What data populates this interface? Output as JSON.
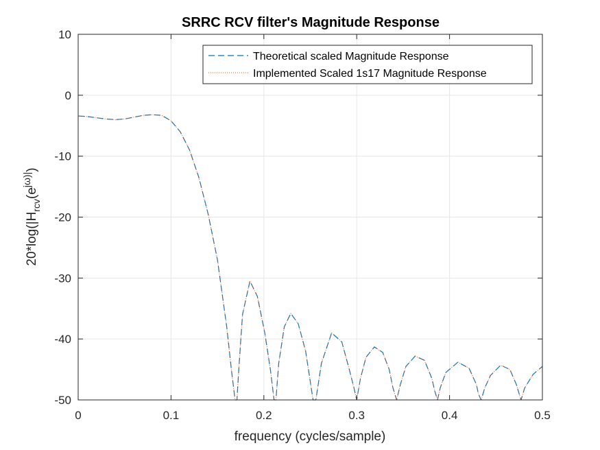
{
  "chart_data": {
    "type": "line",
    "title": "SRRC RCV filter's Magnitude Response",
    "xlabel": "frequency (cycles/sample)",
    "ylabel": "20*log(|H_rcv(e^jω)|)",
    "xlim": [
      0,
      0.5
    ],
    "ylim": [
      -50,
      10
    ],
    "xticks": [
      0,
      0.1,
      0.2,
      0.3,
      0.4,
      0.5
    ],
    "yticks": [
      10,
      0,
      -10,
      -20,
      -30,
      -40,
      -50
    ],
    "xtick_labels": [
      "0",
      "0.1",
      "0.2",
      "0.3",
      "0.4",
      "0.5"
    ],
    "ytick_labels": [
      "10",
      "0",
      "-10",
      "-20",
      "-30",
      "-40",
      "-50"
    ],
    "grid": true,
    "legend_position": "top-right",
    "colors": {
      "series1": "#0072BD",
      "series2": "#D95319"
    },
    "series": [
      {
        "name": "Theoretical scaled Magnitude Response",
        "style": "dashed",
        "x": [
          0,
          0.01,
          0.02,
          0.03,
          0.04,
          0.05,
          0.06,
          0.07,
          0.08,
          0.09,
          0.1,
          0.11,
          0.12,
          0.13,
          0.14,
          0.15,
          0.16,
          0.165,
          0.169,
          0.171,
          0.173,
          0.177,
          0.185,
          0.193,
          0.201,
          0.207,
          0.211,
          0.213,
          0.216,
          0.222,
          0.229,
          0.237,
          0.245,
          0.25,
          0.253,
          0.256,
          0.262,
          0.273,
          0.284,
          0.292,
          0.297,
          0.3,
          0.304,
          0.31,
          0.319,
          0.328,
          0.335,
          0.339,
          0.343,
          0.347,
          0.353,
          0.363,
          0.373,
          0.381,
          0.384,
          0.387,
          0.39,
          0.396,
          0.409,
          0.421,
          0.429,
          0.431,
          0.434,
          0.438,
          0.444,
          0.455,
          0.465,
          0.472,
          0.475,
          0.477,
          0.481,
          0.49,
          0.5
        ],
        "y": [
          -3.4,
          -3.5,
          -3.7,
          -3.9,
          -4.0,
          -3.9,
          -3.6,
          -3.3,
          -3.2,
          -3.3,
          -4.2,
          -6.0,
          -9.0,
          -13.5,
          -19.5,
          -27.0,
          -38.0,
          -45.0,
          -50.0,
          -50.0,
          -45.0,
          -36.0,
          -30.5,
          -33.0,
          -39.0,
          -45.0,
          -50.0,
          -50.0,
          -44.0,
          -38.0,
          -35.8,
          -37.5,
          -42.0,
          -47.0,
          -50.0,
          -50.0,
          -44.0,
          -39.0,
          -40.5,
          -45.0,
          -48.0,
          -50.0,
          -46.5,
          -43.0,
          -41.3,
          -42.2,
          -45.0,
          -48.0,
          -50.0,
          -47.5,
          -44.5,
          -42.8,
          -43.5,
          -46.5,
          -48.5,
          -50.0,
          -48.0,
          -45.5,
          -43.8,
          -44.8,
          -47.5,
          -49.0,
          -50.0,
          -48.0,
          -46.0,
          -44.3,
          -45.0,
          -47.5,
          -49.0,
          -50.0,
          -48.0,
          -45.8,
          -44.5
        ]
      },
      {
        "name": "Implemented Scaled 1s17 Magnitude Response",
        "style": "dotted",
        "x": [
          0,
          0.01,
          0.02,
          0.03,
          0.04,
          0.05,
          0.06,
          0.07,
          0.08,
          0.09,
          0.1,
          0.11,
          0.12,
          0.13,
          0.14,
          0.15,
          0.16,
          0.165,
          0.169,
          0.171,
          0.173,
          0.177,
          0.185,
          0.193,
          0.201,
          0.207,
          0.211,
          0.213,
          0.216,
          0.222,
          0.229,
          0.237,
          0.245,
          0.25,
          0.253,
          0.256,
          0.262,
          0.273,
          0.284,
          0.292,
          0.297,
          0.3,
          0.304,
          0.31,
          0.319,
          0.328,
          0.335,
          0.339,
          0.343,
          0.347,
          0.353,
          0.363,
          0.373,
          0.381,
          0.384,
          0.387,
          0.39,
          0.396,
          0.409,
          0.421,
          0.429,
          0.431,
          0.434,
          0.438,
          0.444,
          0.455,
          0.465,
          0.472,
          0.475,
          0.477,
          0.481,
          0.49,
          0.5
        ],
        "y": [
          -3.4,
          -3.5,
          -3.7,
          -3.9,
          -4.0,
          -3.9,
          -3.6,
          -3.3,
          -3.2,
          -3.3,
          -4.2,
          -6.0,
          -9.0,
          -13.5,
          -19.5,
          -27.0,
          -38.0,
          -45.0,
          -50.0,
          -50.0,
          -45.0,
          -36.0,
          -30.5,
          -33.0,
          -39.0,
          -45.0,
          -50.0,
          -50.0,
          -44.0,
          -38.0,
          -35.8,
          -37.5,
          -42.0,
          -47.0,
          -50.0,
          -50.0,
          -44.0,
          -39.0,
          -40.5,
          -45.0,
          -48.0,
          -50.0,
          -46.5,
          -43.0,
          -41.3,
          -42.2,
          -45.0,
          -48.0,
          -50.0,
          -47.5,
          -44.5,
          -42.8,
          -43.5,
          -46.5,
          -48.5,
          -50.0,
          -48.0,
          -45.5,
          -43.8,
          -44.8,
          -47.5,
          -49.0,
          -50.0,
          -48.0,
          -46.0,
          -44.3,
          -45.0,
          -47.5,
          -49.0,
          -50.0,
          -48.0,
          -45.8,
          -44.5
        ]
      }
    ]
  }
}
